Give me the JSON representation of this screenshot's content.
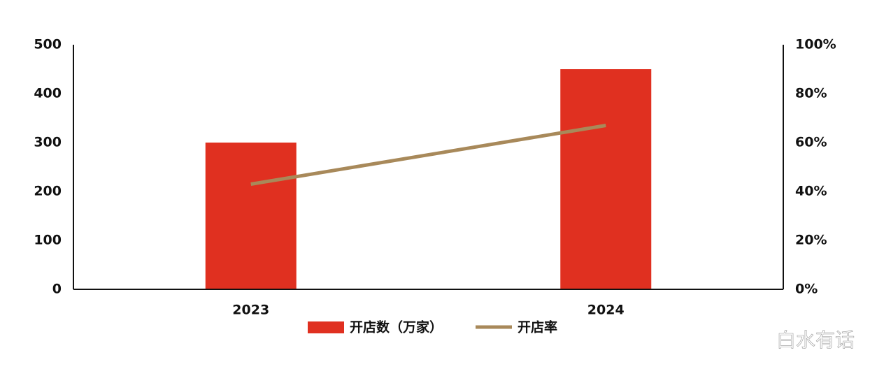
{
  "chart_data": {
    "type": "bar_line",
    "categories": [
      "2023",
      "2024"
    ],
    "series": [
      {
        "name": "开店数（万家）",
        "type": "bar",
        "color": "#e03020",
        "values": [
          300,
          450
        ]
      },
      {
        "name": "开店率",
        "type": "line",
        "axis": "y2",
        "color": "#a8895a",
        "values": [
          43,
          67
        ]
      }
    ],
    "ylim": [
      0,
      500
    ],
    "yticks": [
      0,
      100,
      200,
      300,
      400,
      500
    ],
    "y2lim": [
      0,
      100
    ],
    "y2ticks": [
      {
        "value": 0,
        "label": "0%"
      },
      {
        "value": 20,
        "label": "20%"
      },
      {
        "value": 40,
        "label": "40%"
      },
      {
        "value": 60,
        "label": "60%"
      },
      {
        "value": 80,
        "label": "80%"
      },
      {
        "value": 100,
        "label": "100%"
      }
    ],
    "legend": "bottom",
    "watermark": "白水有话"
  }
}
